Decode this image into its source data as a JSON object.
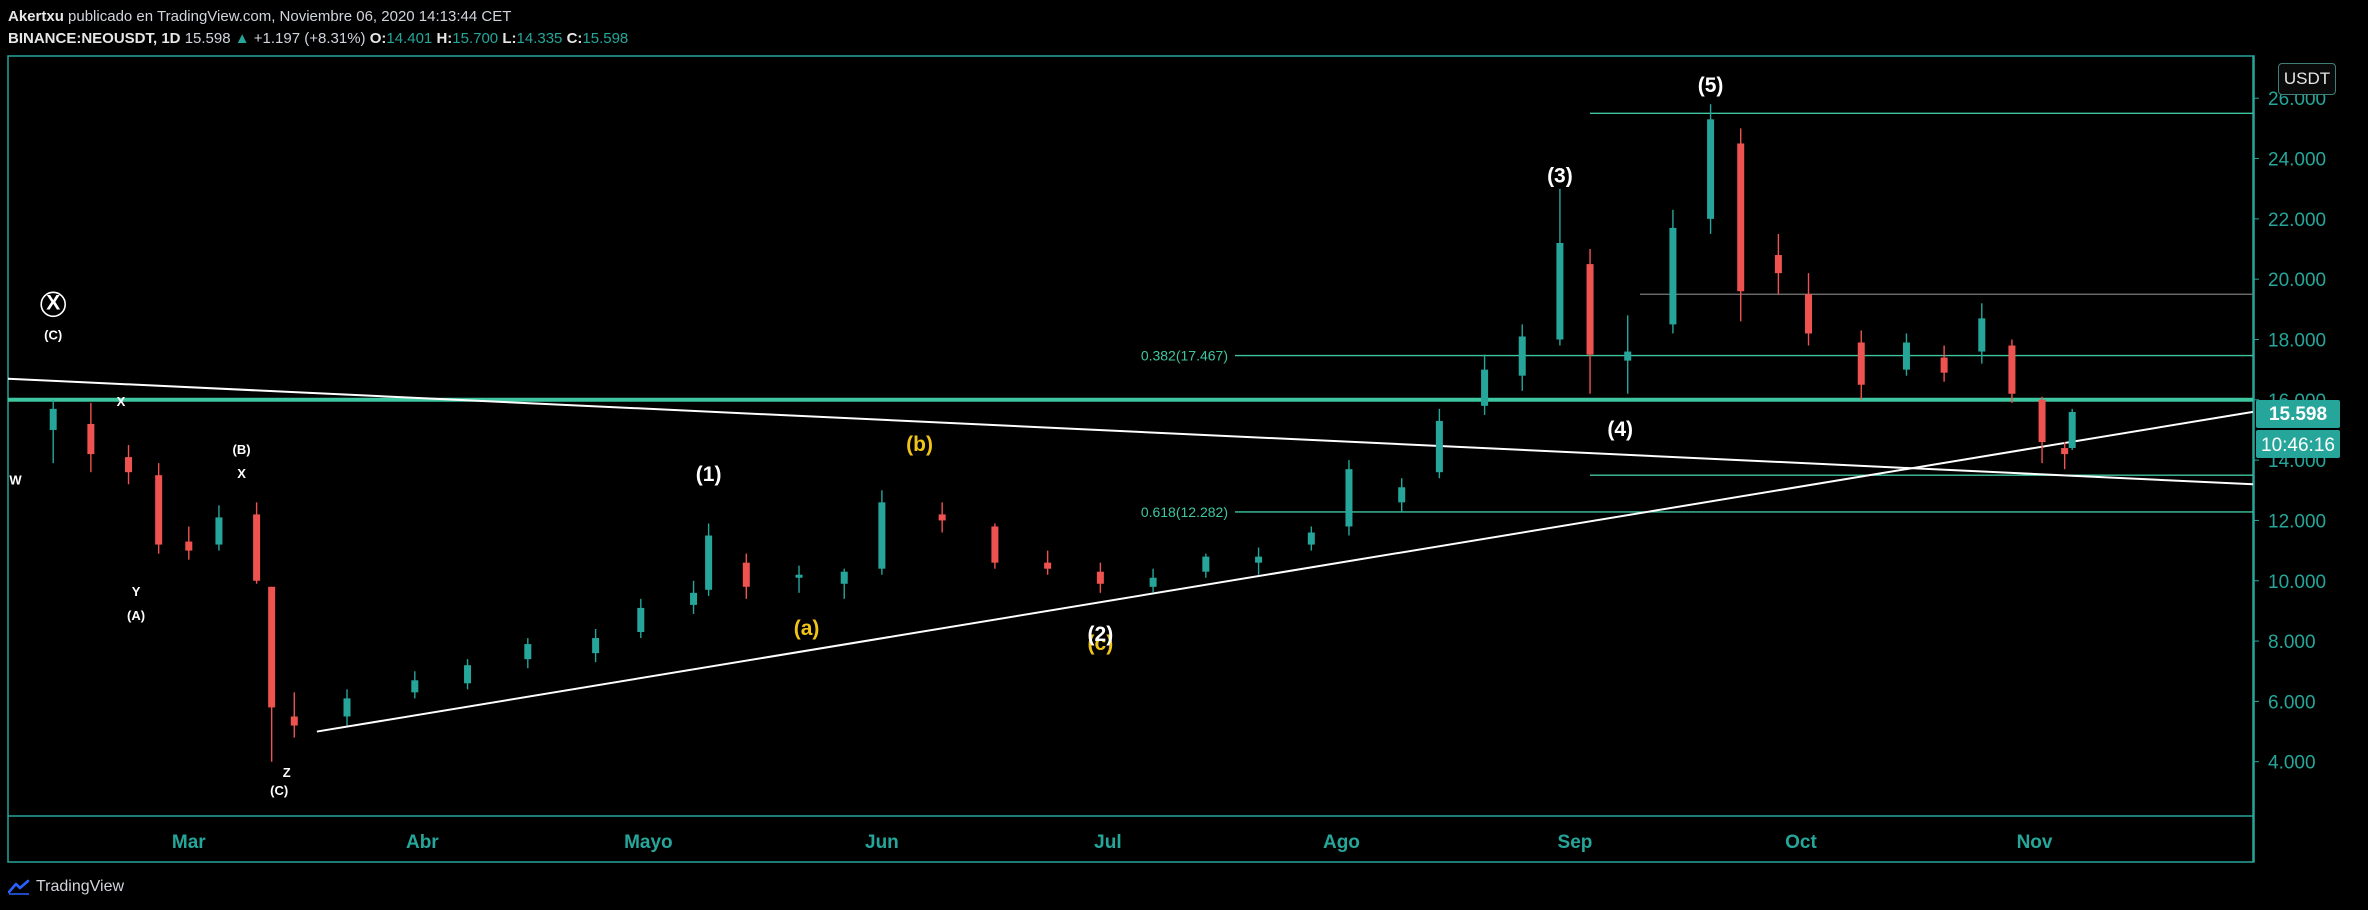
{
  "header": {
    "author": "Akertxu",
    "published": "publicado en TradingView.com, Noviembre 06, 2020 14:13:44 CET",
    "symbol": "BINANCE:NEOUSDT, 1D",
    "last": "15.598",
    "change": "+1.197 (+8.31%)",
    "o_label": "O:",
    "o": "14.401",
    "h_label": "H:",
    "h": "15.700",
    "l_label": "L:",
    "l": "14.335",
    "c_label": "C:",
    "c": "15.598"
  },
  "footer": {
    "brand": "TradingView"
  },
  "currency_button": "USDT",
  "price_badge": "15.598",
  "countdown_badge": "10:46:16",
  "colors": {
    "up": "#26a69a",
    "down": "#ef5350",
    "frame": "#26a69a",
    "fib": "#3ec6a0",
    "text": "#d1d4dc",
    "label_yellow": "#f0c419"
  },
  "chart_data": {
    "type": "candlestick",
    "symbol": "BINANCE:NEOUSDT",
    "interval": "1D",
    "y_ticks": [
      "4.000",
      "6.000",
      "8.000",
      "10.000",
      "12.000",
      "14.000",
      "16.000",
      "18.000",
      "20.000",
      "22.000",
      "24.000",
      "26.000"
    ],
    "x_ticks": [
      "Mar",
      "Abr",
      "Mayo",
      "Jun",
      "Jul",
      "Ago",
      "Sep",
      "Oct",
      "Nov"
    ],
    "ylim": [
      2.2,
      27.4
    ],
    "x_start": "2020-02-06",
    "x_end": "2020-11-30",
    "candles": [
      {
        "d": "2020-02-12",
        "o": 15.0,
        "h": 16.0,
        "l": 13.9,
        "c": 15.7
      },
      {
        "d": "2020-02-17",
        "o": 15.2,
        "h": 15.9,
        "l": 13.6,
        "c": 14.2
      },
      {
        "d": "2020-02-22",
        "o": 14.1,
        "h": 14.5,
        "l": 13.2,
        "c": 13.6
      },
      {
        "d": "2020-02-26",
        "o": 13.5,
        "h": 13.9,
        "l": 10.9,
        "c": 11.2
      },
      {
        "d": "2020-03-01",
        "o": 11.3,
        "h": 11.8,
        "l": 10.7,
        "c": 11.0
      },
      {
        "d": "2020-03-05",
        "o": 11.2,
        "h": 12.5,
        "l": 11.0,
        "c": 12.1
      },
      {
        "d": "2020-03-10",
        "o": 12.2,
        "h": 12.6,
        "l": 9.9,
        "c": 10.0
      },
      {
        "d": "2020-03-12",
        "o": 9.8,
        "h": 9.8,
        "l": 4.0,
        "c": 5.8
      },
      {
        "d": "2020-03-15",
        "o": 5.5,
        "h": 6.3,
        "l": 4.8,
        "c": 5.2
      },
      {
        "d": "2020-03-22",
        "o": 5.5,
        "h": 6.4,
        "l": 5.2,
        "c": 6.1
      },
      {
        "d": "2020-03-31",
        "o": 6.3,
        "h": 7.0,
        "l": 6.1,
        "c": 6.7
      },
      {
        "d": "2020-04-07",
        "o": 6.6,
        "h": 7.4,
        "l": 6.4,
        "c": 7.2
      },
      {
        "d": "2020-04-15",
        "o": 7.4,
        "h": 8.1,
        "l": 7.1,
        "c": 7.9
      },
      {
        "d": "2020-04-24",
        "o": 7.6,
        "h": 8.4,
        "l": 7.3,
        "c": 8.1
      },
      {
        "d": "2020-04-30",
        "o": 8.3,
        "h": 9.4,
        "l": 8.1,
        "c": 9.1
      },
      {
        "d": "2020-05-07",
        "o": 9.2,
        "h": 10.0,
        "l": 8.9,
        "c": 9.6
      },
      {
        "d": "2020-05-09",
        "o": 9.7,
        "h": 11.9,
        "l": 9.5,
        "c": 11.5
      },
      {
        "d": "2020-05-14",
        "o": 10.6,
        "h": 10.9,
        "l": 9.4,
        "c": 9.8
      },
      {
        "d": "2020-05-21",
        "o": 10.1,
        "h": 10.5,
        "l": 9.6,
        "c": 10.2
      },
      {
        "d": "2020-05-27",
        "o": 9.9,
        "h": 10.4,
        "l": 9.4,
        "c": 10.3
      },
      {
        "d": "2020-06-01",
        "o": 10.4,
        "h": 13.0,
        "l": 10.2,
        "c": 12.6
      },
      {
        "d": "2020-06-09",
        "o": 12.2,
        "h": 12.6,
        "l": 11.6,
        "c": 12.0
      },
      {
        "d": "2020-06-16",
        "o": 11.8,
        "h": 11.9,
        "l": 10.4,
        "c": 10.6
      },
      {
        "d": "2020-06-23",
        "o": 10.6,
        "h": 11.0,
        "l": 10.2,
        "c": 10.4
      },
      {
        "d": "2020-06-30",
        "o": 10.3,
        "h": 10.6,
        "l": 9.6,
        "c": 9.9
      },
      {
        "d": "2020-07-07",
        "o": 9.8,
        "h": 10.4,
        "l": 9.6,
        "c": 10.1
      },
      {
        "d": "2020-07-14",
        "o": 10.3,
        "h": 10.9,
        "l": 10.1,
        "c": 10.8
      },
      {
        "d": "2020-07-21",
        "o": 10.6,
        "h": 11.1,
        "l": 10.2,
        "c": 10.8
      },
      {
        "d": "2020-07-28",
        "o": 11.2,
        "h": 11.8,
        "l": 11.0,
        "c": 11.6
      },
      {
        "d": "2020-08-02",
        "o": 11.8,
        "h": 14.0,
        "l": 11.5,
        "c": 13.7
      },
      {
        "d": "2020-08-09",
        "o": 12.6,
        "h": 13.4,
        "l": 12.3,
        "c": 13.1
      },
      {
        "d": "2020-08-14",
        "o": 13.6,
        "h": 15.7,
        "l": 13.4,
        "c": 15.3
      },
      {
        "d": "2020-08-20",
        "o": 15.8,
        "h": 17.5,
        "l": 15.5,
        "c": 17.0
      },
      {
        "d": "2020-08-25",
        "o": 16.8,
        "h": 18.5,
        "l": 16.3,
        "c": 18.1
      },
      {
        "d": "2020-08-30",
        "o": 18.0,
        "h": 23.0,
        "l": 17.8,
        "c": 21.2
      },
      {
        "d": "2020-09-03",
        "o": 20.5,
        "h": 21.0,
        "l": 16.2,
        "c": 17.5
      },
      {
        "d": "2020-09-08",
        "o": 17.3,
        "h": 18.8,
        "l": 16.2,
        "c": 17.6
      },
      {
        "d": "2020-09-14",
        "o": 18.5,
        "h": 22.3,
        "l": 18.2,
        "c": 21.7
      },
      {
        "d": "2020-09-19",
        "o": 22.0,
        "h": 25.8,
        "l": 21.5,
        "c": 25.3
      },
      {
        "d": "2020-09-23",
        "o": 24.5,
        "h": 25.0,
        "l": 18.6,
        "c": 19.6
      },
      {
        "d": "2020-09-28",
        "o": 20.8,
        "h": 21.5,
        "l": 19.5,
        "c": 20.2
      },
      {
        "d": "2020-10-02",
        "o": 19.5,
        "h": 20.2,
        "l": 17.8,
        "c": 18.2
      },
      {
        "d": "2020-10-09",
        "o": 17.9,
        "h": 18.3,
        "l": 16.0,
        "c": 16.5
      },
      {
        "d": "2020-10-15",
        "o": 17.0,
        "h": 18.2,
        "l": 16.8,
        "c": 17.9
      },
      {
        "d": "2020-10-20",
        "o": 17.4,
        "h": 17.8,
        "l": 16.6,
        "c": 16.9
      },
      {
        "d": "2020-10-25",
        "o": 17.6,
        "h": 19.2,
        "l": 17.2,
        "c": 18.7
      },
      {
        "d": "2020-10-29",
        "o": 17.8,
        "h": 18.0,
        "l": 15.9,
        "c": 16.2
      },
      {
        "d": "2020-11-02",
        "o": 16.0,
        "h": 16.1,
        "l": 13.9,
        "c": 14.6
      },
      {
        "d": "2020-11-05",
        "o": 14.4,
        "h": 14.6,
        "l": 13.7,
        "c": 14.2
      },
      {
        "d": "2020-11-06",
        "o": 14.401,
        "h": 15.7,
        "l": 14.335,
        "c": 15.598
      }
    ],
    "horizontal_levels": [
      {
        "price": 16.0,
        "label": "",
        "color": "#3ec6a0",
        "strong": true
      },
      {
        "price": 17.467,
        "label": "0.382(17.467)",
        "color": "#3ec6a0"
      },
      {
        "price": 12.282,
        "label": "0.618(12.282)",
        "color": "#3ec6a0"
      },
      {
        "price": 13.5,
        "label": "",
        "color": "#3ec6a0"
      },
      {
        "price": 19.5,
        "label": "",
        "color": "#7a7a7a"
      },
      {
        "price": 25.5,
        "label": "",
        "color": "#3ec6a0"
      }
    ],
    "trendlines": [
      {
        "from": {
          "d": "2020-02-06",
          "p": 16.7
        },
        "to": {
          "d": "2020-11-30",
          "p": 13.2
        }
      },
      {
        "from": {
          "d": "2020-03-18",
          "p": 5.0
        },
        "to": {
          "d": "2020-11-30",
          "p": 15.6
        }
      }
    ],
    "wave_labels": [
      {
        "text": "X",
        "d": "2020-02-12",
        "p": 19.0,
        "circle": true,
        "color": "#ffffff"
      },
      {
        "text": "(C)",
        "d": "2020-02-12",
        "p": 18.0,
        "color": "#ffffff",
        "small": true
      },
      {
        "text": "X",
        "d": "2020-02-21",
        "p": 15.8,
        "color": "#ffffff",
        "small": true
      },
      {
        "text": "W",
        "d": "2020-02-07",
        "p": 13.2,
        "color": "#ffffff",
        "small": true
      },
      {
        "text": "(B)",
        "d": "2020-03-08",
        "p": 14.2,
        "color": "#ffffff",
        "small": true
      },
      {
        "text": "X",
        "d": "2020-03-08",
        "p": 13.4,
        "color": "#ffffff",
        "small": true
      },
      {
        "text": "Y",
        "d": "2020-02-23",
        "p": 9.5,
        "color": "#ffffff",
        "small": true
      },
      {
        "text": "(A)",
        "d": "2020-02-23",
        "p": 8.7,
        "color": "#ffffff",
        "small": true
      },
      {
        "text": "Z",
        "d": "2020-03-14",
        "p": 3.5,
        "color": "#ffffff",
        "small": true
      },
      {
        "text": "(C)",
        "d": "2020-03-13",
        "p": 2.9,
        "color": "#ffffff",
        "small": true
      },
      {
        "text": "(1)",
        "d": "2020-05-09",
        "p": 13.3,
        "color": "#ffffff"
      },
      {
        "text": "(a)",
        "d": "2020-05-22",
        "p": 8.2,
        "color": "#f0c419"
      },
      {
        "text": "(b)",
        "d": "2020-06-06",
        "p": 14.3,
        "color": "#f0c419"
      },
      {
        "text": "(c)",
        "d": "2020-06-30",
        "p": 7.7,
        "color": "#f0c419"
      },
      {
        "text": "(2)",
        "d": "2020-06-30",
        "p": 8.0,
        "color": "#ffffff"
      },
      {
        "text": "(3)",
        "d": "2020-08-30",
        "p": 23.2,
        "color": "#ffffff"
      },
      {
        "text": "(4)",
        "d": "2020-09-07",
        "p": 14.8,
        "color": "#ffffff"
      },
      {
        "text": "(5)",
        "d": "2020-09-19",
        "p": 26.2,
        "color": "#ffffff"
      }
    ]
  }
}
